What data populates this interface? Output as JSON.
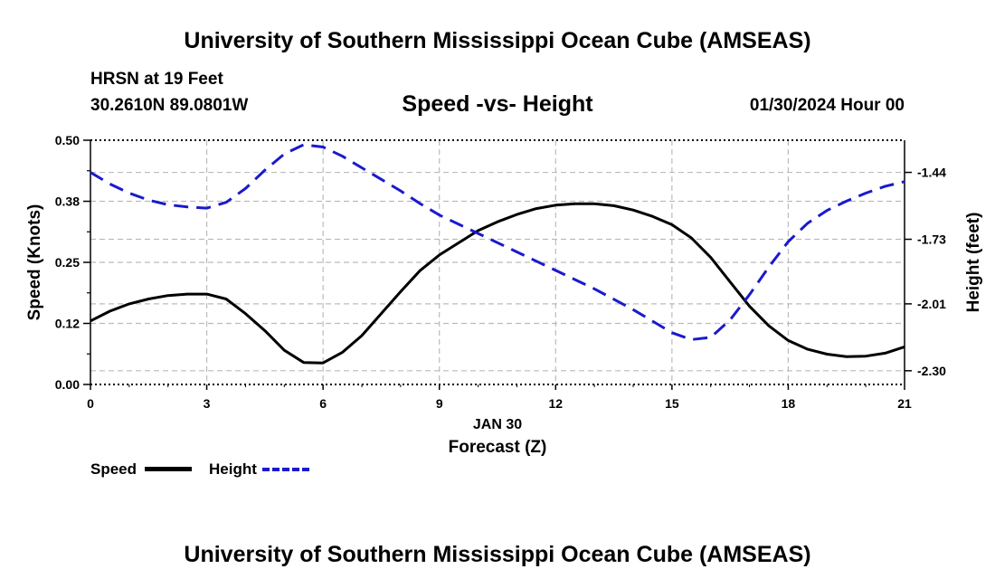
{
  "page": {
    "title": "University of Southern Mississippi Ocean Cube (AMSEAS)",
    "title_repeat": "University of Southern Mississippi Ocean Cube (AMSEAS)",
    "station": "HRSN at 19 Feet",
    "coordinates": "30.2610N  89.0801W",
    "subtitle": "Speed -vs- Height",
    "datetime": "01/30/2024 Hour 00"
  },
  "legend": {
    "speed_label": "Speed",
    "height_label": "Height"
  },
  "colors": {
    "speed": "#000000",
    "height": "#1a1acc",
    "grid": "#bbbbbb"
  },
  "chart_data": {
    "type": "line",
    "title": "Speed -vs- Height",
    "xlabel": "Forecast (Z)",
    "xlabel_date": "JAN 30",
    "ylabel_left": "Speed (Knots)",
    "ylabel_right": "Height (feet)",
    "x_ticks": [
      0,
      3,
      6,
      9,
      12,
      15,
      18,
      21
    ],
    "x_tick_labels": [
      "0",
      "3",
      "6",
      "9",
      "12",
      "15",
      "18",
      "21"
    ],
    "xlim": [
      0,
      21
    ],
    "ylim_left": [
      0,
      0.5
    ],
    "y_ticks_left": [
      0,
      0.125,
      0.25,
      0.375,
      0.5
    ],
    "y_tick_labels_left": [
      "0.00",
      "0.12",
      "0.25",
      "0.38",
      "0.50"
    ],
    "ylim_right": [
      -2.3595,
      -1.3005
    ],
    "y_ticks_right": [
      -1.44,
      -1.73,
      -2.01,
      -2.3
    ],
    "y_tick_labels_right": [
      "-1.44",
      "-1.73",
      "-2.01",
      "-2.30"
    ],
    "grid": true,
    "series": [
      {
        "name": "Speed",
        "axis": "left",
        "style": "solid",
        "x": [
          0,
          0.5,
          1,
          1.5,
          2,
          2.5,
          3,
          3.5,
          4,
          4.5,
          5,
          5.5,
          6,
          6.5,
          7,
          7.5,
          8,
          8.5,
          9,
          9.5,
          10,
          10.5,
          11,
          11.5,
          12,
          12.5,
          13,
          13.5,
          14,
          14.5,
          15,
          15.5,
          16,
          16.5,
          17,
          17.5,
          18,
          18.5,
          19,
          19.5,
          20,
          20.5,
          21
        ],
        "values": [
          0.13,
          0.15,
          0.165,
          0.175,
          0.182,
          0.185,
          0.185,
          0.175,
          0.145,
          0.11,
          0.07,
          0.045,
          0.044,
          0.066,
          0.1,
          0.145,
          0.19,
          0.233,
          0.265,
          0.29,
          0.315,
          0.333,
          0.348,
          0.36,
          0.367,
          0.37,
          0.37,
          0.366,
          0.357,
          0.344,
          0.327,
          0.3,
          0.26,
          0.21,
          0.16,
          0.12,
          0.09,
          0.072,
          0.062,
          0.057,
          0.058,
          0.064,
          0.077
        ]
      },
      {
        "name": "Height",
        "axis": "right",
        "style": "dashed",
        "x": [
          0,
          0.5,
          1,
          1.5,
          2,
          2.5,
          3,
          3.5,
          4,
          4.5,
          5,
          5.5,
          6,
          6.5,
          7,
          7.5,
          8,
          8.5,
          9,
          9.5,
          10,
          10.5,
          11,
          11.5,
          12,
          12.5,
          13,
          13.5,
          14,
          14.5,
          15,
          15.5,
          16,
          16.5,
          17,
          17.5,
          18,
          18.5,
          19,
          19.5,
          20,
          20.5,
          21
        ],
        "values": [
          -1.44,
          -1.49,
          -1.53,
          -1.56,
          -1.58,
          -1.59,
          -1.595,
          -1.57,
          -1.51,
          -1.43,
          -1.36,
          -1.32,
          -1.33,
          -1.37,
          -1.42,
          -1.47,
          -1.52,
          -1.575,
          -1.625,
          -1.665,
          -1.705,
          -1.745,
          -1.785,
          -1.825,
          -1.865,
          -1.905,
          -1.945,
          -1.99,
          -2.035,
          -2.085,
          -2.135,
          -2.165,
          -2.155,
          -2.08,
          -1.97,
          -1.85,
          -1.74,
          -1.66,
          -1.605,
          -1.565,
          -1.53,
          -1.5,
          -1.48
        ]
      }
    ]
  }
}
